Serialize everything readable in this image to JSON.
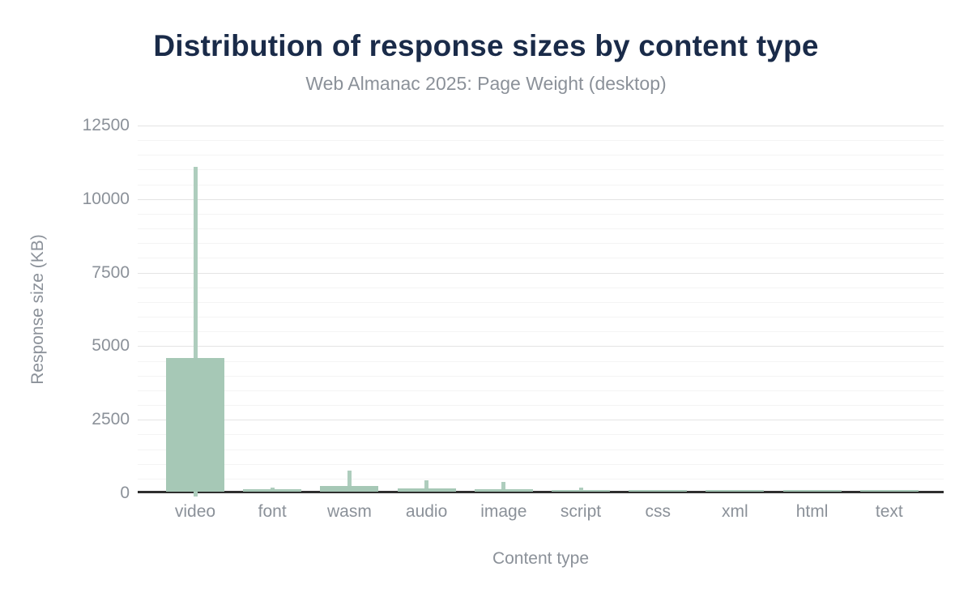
{
  "chart_data": {
    "type": "bar",
    "title": "Distribution of response sizes by content type",
    "subtitle": "Web Almanac 2025: Page Weight (desktop)",
    "xlabel": "Content type",
    "ylabel": "Response size (KB)",
    "ylim": [
      0,
      12500
    ],
    "y_tick_step": 2500,
    "y_minor_step": 500,
    "y_tick_labels": [
      "0",
      "2500",
      "5000",
      "7500",
      "10000",
      "12500"
    ],
    "grid": "horizontal-major-and-minor",
    "legend_position": "none",
    "categories": [
      "video",
      "font",
      "wasm",
      "audio",
      "image",
      "script",
      "css",
      "xml",
      "html",
      "text"
    ],
    "series": [
      {
        "name": "bar_value_kb",
        "values": [
          4600,
          140,
          250,
          160,
          150,
          110,
          80,
          80,
          80,
          75
        ]
      },
      {
        "name": "whisker_top_kb",
        "values": [
          11100,
          200,
          780,
          450,
          380,
          200,
          90,
          90,
          90,
          85
        ]
      }
    ],
    "lower_whisker_cap_visible": [
      true,
      false,
      false,
      false,
      false,
      false,
      false,
      false,
      false,
      false
    ],
    "colors": {
      "bar_fill": "#a6c8b6",
      "whisker": "#aecdbd",
      "axis_line": "#2f2f2f",
      "grid_major": "#e4e4e4",
      "grid_minor": "#f4f4f4",
      "title_color": "#1a2b49",
      "label_color": "#8b9199",
      "background": "#ffffff"
    }
  }
}
